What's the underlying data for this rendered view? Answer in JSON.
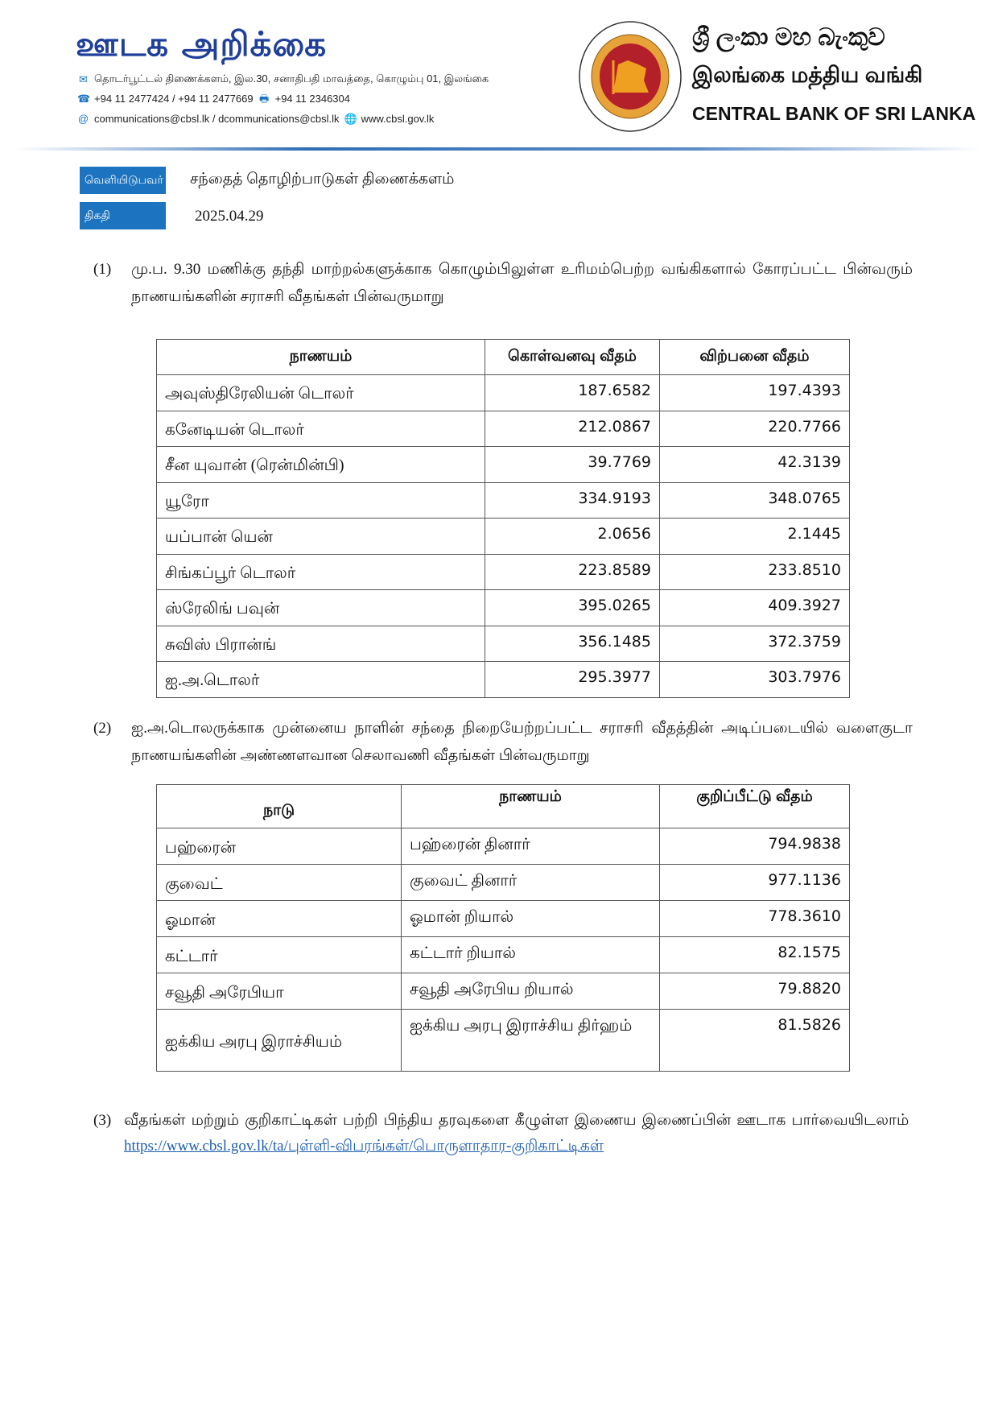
{
  "header": {
    "title": "ஊடக அறிக்கை",
    "address": "தொடர்பூட்டல் திணைக்களம், இல.30, சனாதிபதி மாவத்தை, கொழும்பு 01, இலங்கை",
    "phones": "+94 11 2477424 / +94 11 2477669",
    "fax": "+94 11  2346304",
    "emails": "communications@cbsl.lk / dcommunications@cbsl.lk",
    "website": "www.cbsl.gov.lk",
    "bank_sinhala": "ශ්‍රී ලංකා මහ බැංකුව",
    "bank_tamil": "இலங்கை மத்திய வங்கி",
    "bank_english": "CENTRAL BANK OF SRI LANKA",
    "seal_text": "CENTRAL BANK OF SRI LANKA"
  },
  "meta": {
    "issuer_label": "வெளியிடுபவர்",
    "issuer": "சந்தைத் தொழிற்பாடுகள் திணைக்களம்",
    "date_label": "திகதி",
    "date": "2025.04.29"
  },
  "section1": {
    "num": "(1)",
    "text": "மு.ப. 9.30 மணிக்கு தந்தி மாற்றல்களுக்காக கொழும்பிலுள்ள உரிமம்பெற்ற வங்கிகளால் கோரப்பட்ட பின்வரும் நாணயங்களின் சராசரி வீதங்கள் பின்வருமாறு"
  },
  "table1": {
    "headers": [
      "நாணயம்",
      "கொள்வனவு வீதம்",
      "விற்பனை வீதம்"
    ],
    "rows": [
      [
        "அவுஸ்திரேலியன் டொலர்",
        "187.6582",
        "197.4393"
      ],
      [
        "கனேடியன் டொலர்",
        "212.0867",
        "220.7766"
      ],
      [
        "சீன யுவான் (ரென்மின்பி)",
        "39.7769",
        "42.3139"
      ],
      [
        "யூரோ",
        "334.9193",
        "348.0765"
      ],
      [
        "யப்பான் யென்",
        "2.0656",
        "2.1445"
      ],
      [
        "சிங்கப்பூர் டொலர்",
        "223.8589",
        "233.8510"
      ],
      [
        "ஸ்ரேலிங் பவுன்",
        "395.0265",
        "409.3927"
      ],
      [
        "சுவிஸ் பிரான்ங்",
        "356.1485",
        "372.3759"
      ],
      [
        "ஐ.அ.டொலர்",
        "295.3977",
        "303.7976"
      ]
    ]
  },
  "section2": {
    "num": "(2)",
    "text": "ஐ.அ.டொலருக்காக முன்னைய நாளின் சந்தை நிறையேற்றப்பட்ட சராசரி வீதத்தின் அடிப்படையில் வளைகுடா நாணயங்களின் அண்ணளவான செலாவணி வீதங்கள் பின்வருமாறு"
  },
  "table2": {
    "headers": [
      "நாடு",
      "நாணயம்",
      "குறிப்பீட்டு வீதம்"
    ],
    "rows": [
      [
        "பஹ்ரைன்",
        "பஹ்ரைன் தினார்",
        "794.9838"
      ],
      [
        "குவைட்",
        "குவைட் தினார்",
        "977.1136"
      ],
      [
        "ஓமான்",
        "ஓமான் றியால்",
        "778.3610"
      ],
      [
        "கட்டார்",
        "கட்டார் றியால்",
        "82.1575"
      ],
      [
        "சவூதி அரேபியா",
        "சவூதி அரேபிய றியால்",
        "79.8820"
      ],
      [
        "ஐக்கிய அரபு இராச்சியம்",
        "ஐக்கிய அரபு இராச்சிய திர்ஹம்",
        "81.5826"
      ]
    ]
  },
  "section3": {
    "num": "(3)",
    "text": "வீதங்கள் மற்றும் குறிகாட்டிகள் பற்றி பிந்திய தரவுகளை கீழுள்ள இணைய இணைப்பின் ஊடாக பார்வையிடலாம்",
    "link": "https://www.cbsl.gov.lk/ta/புள்ளி-விபரங்கள்/பொருளாதார-குறிகாட்டிகள்"
  },
  "colors": {
    "brand_blue": "#1f3f9a",
    "label_blue": "#1c73c0",
    "seal_red": "#b3202a",
    "lion_gold": "#f0a020"
  }
}
